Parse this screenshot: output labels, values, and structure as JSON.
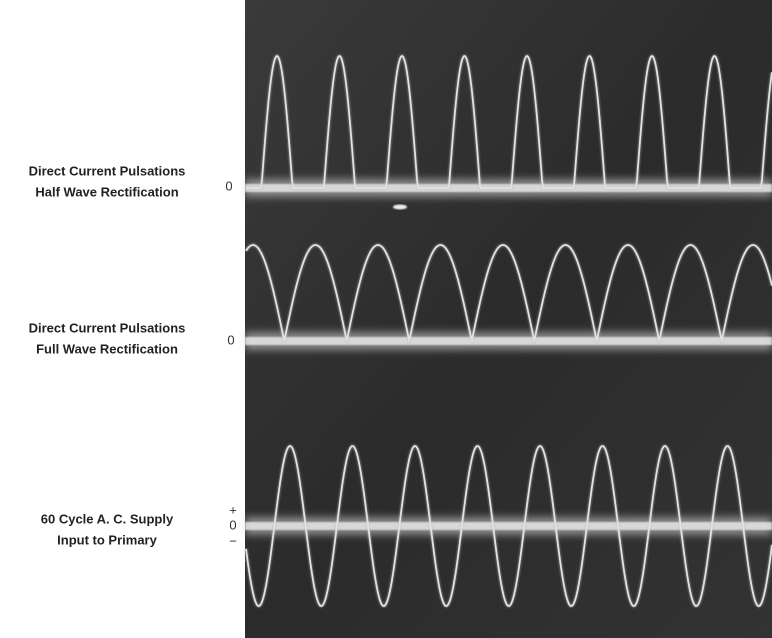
{
  "panels": [
    {
      "label": [
        "Direct Current Pulsations",
        "Half Wave Rectification"
      ],
      "zero": "0"
    },
    {
      "label": [
        "Direct Current Pulsations",
        "Full Wave Rectification"
      ],
      "zero": "0"
    },
    {
      "label": [
        "60 Cycle A. C. Supply",
        "Input to Primary"
      ],
      "plus": "+",
      "zero": "0",
      "minus": "−"
    }
  ]
}
